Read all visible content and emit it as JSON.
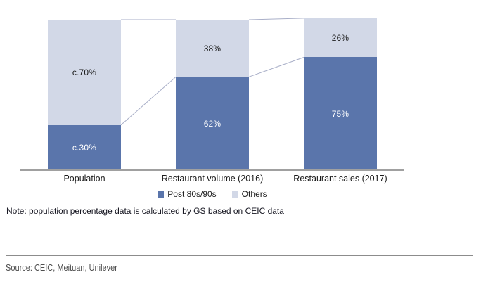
{
  "chart_data": {
    "type": "bar",
    "stacked": true,
    "categories": [
      "Population",
      "Restaurant volume (2016)",
      "Restaurant sales (2017)"
    ],
    "series": [
      {
        "name": "Post 80s/90s",
        "values": [
          30,
          62,
          75
        ],
        "labels": [
          "c.30%",
          "62%",
          "75%"
        ],
        "color": "#5a75ab",
        "label_color": "#ffffff"
      },
      {
        "name": "Others",
        "values": [
          70,
          38,
          26
        ],
        "labels": [
          "c.70%",
          "38%",
          "26%"
        ],
        "color": "#d2d8e7",
        "label_color": "#1a1a1a"
      }
    ],
    "ylim": [
      0,
      100
    ],
    "grid": false,
    "legend_position": "bottom",
    "series_lines": true,
    "series_line_color": "#a9afc8",
    "axis_line_color": "#a0a0a0"
  },
  "note": "Note: population percentage data is calculated by GS based on CEIC data",
  "source": "Source: CEIC, Meituan, Unilever"
}
